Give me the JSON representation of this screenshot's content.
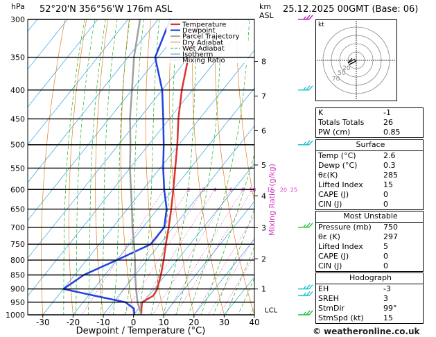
{
  "header": {
    "pressure_unit": "hPa",
    "location": "52°20'N  356°56'W  176m  ASL",
    "height_unit": "km",
    "height_unit_sub": "ASL",
    "datetime": "25.12.2025  00GMT  (Base: 06)"
  },
  "chart_data": {
    "type": "line",
    "title": "",
    "xlabel": "Dewpoint / Temperature (°C)",
    "ylabel": "Mixing Ratio (g/kg)",
    "ylabel_left": "hPa",
    "x_ticks": [
      -30,
      -20,
      -10,
      0,
      10,
      20,
      30,
      40
    ],
    "xlim": [
      -35,
      40
    ],
    "y_scale": "log",
    "ylim": [
      1000,
      300
    ],
    "pressure_levels": [
      300,
      350,
      400,
      450,
      500,
      550,
      600,
      650,
      700,
      750,
      800,
      850,
      900,
      950,
      1000
    ],
    "height_km_ticks": [
      {
        "label": "8",
        "p": 356
      },
      {
        "label": "7",
        "p": 410
      },
      {
        "label": "6",
        "p": 472
      },
      {
        "label": "5",
        "p": 543
      },
      {
        "label": "4",
        "p": 616
      },
      {
        "label": "3",
        "p": 701
      },
      {
        "label": "2",
        "p": 796
      },
      {
        "label": "1",
        "p": 900
      }
    ],
    "lcl": {
      "label": "LCL",
      "p": 979
    },
    "mixing_ratio_labels": [
      "1",
      "2",
      "3",
      "4",
      "6",
      "8",
      "10",
      "15",
      "20",
      "25"
    ],
    "mixing_ratio_values": [
      1,
      2,
      3,
      4,
      6,
      8,
      10,
      15,
      20,
      25
    ],
    "legend": [
      "Temperature",
      "Dewpoint",
      "Parcel Trajectory",
      "Dry Adiabat",
      "Wet Adiabat",
      "Isotherm",
      "Mixing Ratio"
    ],
    "legend_position": "top-center",
    "series": [
      {
        "name": "Temperature",
        "color": "#e03030",
        "points": [
          [
            1000,
            2.6
          ],
          [
            975,
            1.0
          ],
          [
            950,
            -0.5
          ],
          [
            925,
            1.5
          ],
          [
            900,
            1.0
          ],
          [
            850,
            -1.5
          ],
          [
            800,
            -4.5
          ],
          [
            750,
            -8
          ],
          [
            700,
            -11.5
          ],
          [
            650,
            -15.5
          ],
          [
            600,
            -20
          ],
          [
            550,
            -25
          ],
          [
            500,
            -30.5
          ],
          [
            450,
            -37
          ],
          [
            400,
            -43.5
          ],
          [
            350,
            -50
          ],
          [
            300,
            -57
          ]
        ]
      },
      {
        "name": "Dewpoint",
        "color": "#2040e0",
        "points": [
          [
            1000,
            0.3
          ],
          [
            975,
            -1.5
          ],
          [
            950,
            -6
          ],
          [
            925,
            -18
          ],
          [
            900,
            -30
          ],
          [
            850,
            -27
          ],
          [
            800,
            -20
          ],
          [
            750,
            -13
          ],
          [
            700,
            -13
          ],
          [
            650,
            -17
          ],
          [
            600,
            -23
          ],
          [
            550,
            -29
          ],
          [
            500,
            -35
          ],
          [
            450,
            -42
          ],
          [
            400,
            -50
          ],
          [
            350,
            -61
          ],
          [
            300,
            -66
          ]
        ]
      },
      {
        "name": "Parcel Trajectory",
        "color": "#a0a0a0",
        "points": [
          [
            1000,
            2.6
          ],
          [
            979,
            0.7
          ],
          [
            950,
            -2
          ],
          [
            900,
            -6
          ],
          [
            850,
            -10
          ],
          [
            800,
            -14
          ],
          [
            750,
            -18.5
          ],
          [
            700,
            -23.5
          ],
          [
            650,
            -28.5
          ],
          [
            600,
            -34
          ],
          [
            550,
            -40
          ],
          [
            500,
            -46
          ],
          [
            450,
            -53
          ],
          [
            400,
            -60
          ],
          [
            350,
            -68
          ],
          [
            300,
            -76
          ]
        ]
      }
    ]
  },
  "hodograph": {
    "unit": "kt",
    "ring_labels": [
      "20",
      "50",
      "70"
    ],
    "hodo_points": [
      [
        0,
        0
      ],
      [
        -1,
        -1
      ],
      [
        -3,
        -2
      ],
      [
        -5,
        -3
      ]
    ]
  },
  "indices": {
    "rows": [
      {
        "label": "K",
        "value": "-1"
      },
      {
        "label": "Totals Totals",
        "value": "26"
      },
      {
        "label": "PW (cm)",
        "value": "0.85"
      }
    ]
  },
  "surface": {
    "title": "Surface",
    "rows": [
      {
        "label": "Temp (°C)",
        "value": "2.6"
      },
      {
        "label": "Dewp (°C)",
        "value": "0.3"
      },
      {
        "label": "θε(K)",
        "value": "285"
      },
      {
        "label": "Lifted Index",
        "value": "15"
      },
      {
        "label": "CAPE (J)",
        "value": "0"
      },
      {
        "label": "CIN (J)",
        "value": "0"
      }
    ]
  },
  "most_unstable": {
    "title": "Most Unstable",
    "rows": [
      {
        "label": "Pressure (mb)",
        "value": "750"
      },
      {
        "label": "θε (K)",
        "value": "297"
      },
      {
        "label": "Lifted Index",
        "value": "5"
      },
      {
        "label": "CAPE (J)",
        "value": "0"
      },
      {
        "label": "CIN (J)",
        "value": "0"
      }
    ]
  },
  "hodograph_table": {
    "title": "Hodograph",
    "rows": [
      {
        "label": "EH",
        "value": "-3"
      },
      {
        "label": "SREH",
        "value": "3"
      },
      {
        "label": "StmDir",
        "value": "99°"
      },
      {
        "label": "StmSpd (kt)",
        "value": "15"
      }
    ]
  },
  "footer": {
    "credit": "© weatheronline.co.uk"
  },
  "colors": {
    "temperature": "#e03030",
    "dewpoint": "#2040e0",
    "parcel": "#a0a0a0",
    "dry_adiabat": "#e08020",
    "wet_adiabat": "#20b020",
    "isotherm": "#20a0e0",
    "mixing_ratio": "#d040c0",
    "wind_barb": "#20c0d0"
  }
}
